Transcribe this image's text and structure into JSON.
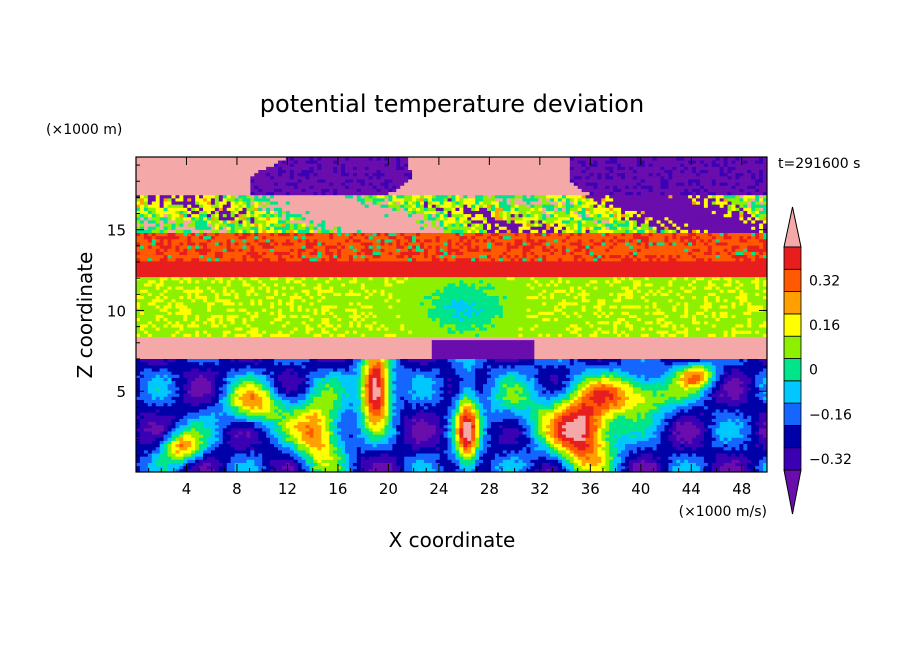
{
  "chart_data": {
    "type": "heatmap",
    "title": "potential temperature deviation",
    "xlabel": "X coordinate",
    "ylabel": "Z coordinate",
    "x_unit": "(×1000 m/s)",
    "y_unit": "(×1000 m)",
    "time_label": "t=291600 s",
    "xlim": [
      0,
      50
    ],
    "ylim": [
      0,
      19.5
    ],
    "x_ticks": [
      4,
      8,
      12,
      16,
      20,
      24,
      28,
      32,
      36,
      40,
      44,
      48
    ],
    "y_ticks": [
      5,
      10,
      15
    ],
    "colorbar": {
      "tick_labels": [
        "0.32",
        "0.16",
        "0",
        "−0.16",
        "−0.32"
      ],
      "tick_values": [
        0.32,
        0.16,
        0,
        -0.16,
        -0.32
      ],
      "levels": [
        -0.4,
        -0.32,
        -0.24,
        -0.16,
        -0.08,
        0,
        0.08,
        0.16,
        0.24,
        0.32,
        0.4
      ],
      "colors": [
        "#6a0dad",
        "#3b00b4",
        "#0000a8",
        "#1565ff",
        "#00c8ff",
        "#00e58a",
        "#8cf000",
        "#ffff00",
        "#ffa000",
        "#ff5a00",
        "#e81e1e",
        "#f5a8a8"
      ],
      "extend": "both"
    },
    "bands": [
      {
        "z_range": [
          17.2,
          19.5
        ],
        "pattern": "mixed pink and purple (about ±0.4+)"
      },
      {
        "z_range": [
          14.8,
          17.2
        ],
        "pattern": "noisy pink / purple / green"
      },
      {
        "z_range": [
          13.0,
          14.8
        ],
        "pattern": "red-orange noisy (≈0.3)"
      },
      {
        "z_range": [
          12.0,
          13.0
        ],
        "pattern": "red (≈0.34)"
      },
      {
        "z_range": [
          8.3,
          12.0
        ],
        "pattern": "green (≈0.0 to 0.1), cyan minimum near x≈26"
      },
      {
        "z_range": [
          7.0,
          8.3
        ],
        "pattern": "pink (>0.4) with purple dome x≈23–32"
      },
      {
        "z_range": [
          0,
          7.0
        ],
        "pattern": "turbulent eddies, mostly purple/blue with red-orange plumes near x≈14, 26, 36"
      }
    ]
  }
}
